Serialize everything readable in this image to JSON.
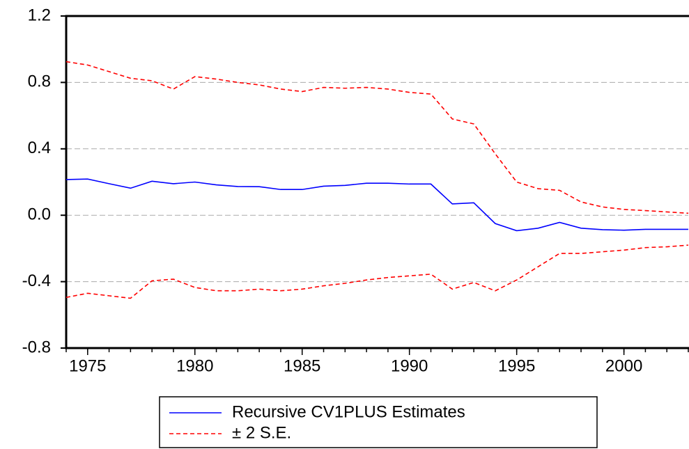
{
  "chart_data": {
    "type": "line",
    "x": [
      1974,
      1975,
      1976,
      1977,
      1978,
      1979,
      1980,
      1981,
      1982,
      1983,
      1984,
      1985,
      1986,
      1987,
      1988,
      1989,
      1990,
      1991,
      1992,
      1993,
      1994,
      1995,
      1996,
      1997,
      1998,
      1999,
      2000,
      2001,
      2002,
      2003
    ],
    "series": [
      {
        "name": "Recursive CV1PLUS Estimates",
        "color": "#0000ff",
        "dashed": false,
        "values": [
          0.215,
          0.218,
          0.19,
          0.163,
          0.205,
          0.19,
          0.2,
          0.183,
          0.173,
          0.172,
          0.155,
          0.155,
          0.175,
          0.18,
          0.193,
          0.193,
          0.188,
          0.188,
          0.068,
          0.075,
          -0.05,
          -0.093,
          -0.078,
          -0.043,
          -0.078,
          -0.087,
          -0.09,
          -0.085,
          -0.085,
          -0.085
        ]
      },
      {
        "name": "± 2 S.E.",
        "color": "#ff0000",
        "dashed": true,
        "upper": [
          0.925,
          0.905,
          0.865,
          0.825,
          0.81,
          0.76,
          0.835,
          0.82,
          0.8,
          0.785,
          0.76,
          0.745,
          0.77,
          0.765,
          0.77,
          0.76,
          0.74,
          0.73,
          0.58,
          0.55,
          0.37,
          0.2,
          0.16,
          0.15,
          0.08,
          0.05,
          0.035,
          0.028,
          0.02,
          0.012
        ],
        "lower": [
          -0.495,
          -0.47,
          -0.485,
          -0.5,
          -0.395,
          -0.385,
          -0.435,
          -0.455,
          -0.455,
          -0.445,
          -0.455,
          -0.445,
          -0.425,
          -0.41,
          -0.39,
          -0.375,
          -0.365,
          -0.355,
          -0.445,
          -0.405,
          -0.455,
          -0.39,
          -0.31,
          -0.23,
          -0.23,
          -0.22,
          -0.21,
          -0.195,
          -0.19,
          -0.18
        ]
      }
    ],
    "xlim": [
      1974,
      2003
    ],
    "xticks": [
      1975,
      1980,
      1985,
      1990,
      1995,
      2000
    ],
    "ylim": [
      -0.8,
      1.2
    ],
    "yticks": [
      1.2,
      0.8,
      0.4,
      {
        "value": 0,
        "label": "0.0"
      },
      -0.4,
      -0.8
    ],
    "grid": true
  }
}
